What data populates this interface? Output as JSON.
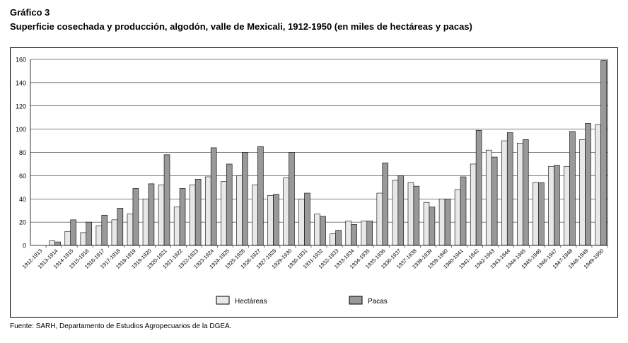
{
  "title": "Gráfico 3",
  "subtitle": "Superficie cosechada y producción, algodón, valle de Mexicali, 1912-1950 (en miles de hectáreas y pacas)",
  "source": "Fuente: SARH, Departamento de Estudios Agropecuarios de la DGEA.",
  "colors": {
    "hectareas": "#e8e8e8",
    "pacas": "#999999",
    "grid": "#000000"
  },
  "chart_data": {
    "type": "bar",
    "ylim": [
      0,
      160
    ],
    "yticks": [
      0,
      20,
      40,
      60,
      80,
      100,
      120,
      140,
      160
    ],
    "grid": true,
    "legend_position": "bottom",
    "categories": [
      "1912-1913",
      "1913-1914",
      "1914-1915",
      "1915-1916",
      "1916-1917",
      "1917-1918",
      "1918-1919",
      "1919-1920",
      "1920-1921",
      "1921-1922",
      "1922-1923",
      "1923-1924",
      "1924-1925",
      "1925-1926",
      "1926-1927",
      "1927-1928",
      "1929-1930",
      "1930-1931",
      "1931-1932",
      "1932-1933",
      "1933-1934",
      "1934-1935",
      "1935-1936",
      "1936-1937",
      "1937-1938",
      "1938-1939",
      "1939-1940",
      "1940-1941",
      "1941-1942",
      "1942-1943",
      "1943-1944",
      "1944-1945",
      "1945-1946",
      "1946-1947",
      "1947-1948",
      "1948-1949",
      "1949-1950"
    ],
    "series": [
      {
        "name": "Hectáreas",
        "values": [
          0,
          4,
          12,
          11,
          17,
          22,
          27,
          40,
          52,
          33,
          52,
          59,
          55,
          60,
          52,
          43,
          58,
          40,
          27,
          10,
          21,
          21,
          45,
          56,
          54,
          37,
          40,
          48,
          70,
          82,
          90,
          88,
          54,
          68,
          68,
          91,
          104
        ]
      },
      {
        "name": "Pacas",
        "values": [
          0,
          3,
          22,
          20,
          26,
          32,
          49,
          53,
          78,
          49,
          57,
          84,
          70,
          80,
          85,
          44,
          80,
          45,
          25,
          13,
          18,
          21,
          71,
          60,
          51,
          33,
          40,
          59,
          99,
          76,
          97,
          91,
          54,
          69,
          98,
          105,
          159
        ]
      }
    ]
  }
}
